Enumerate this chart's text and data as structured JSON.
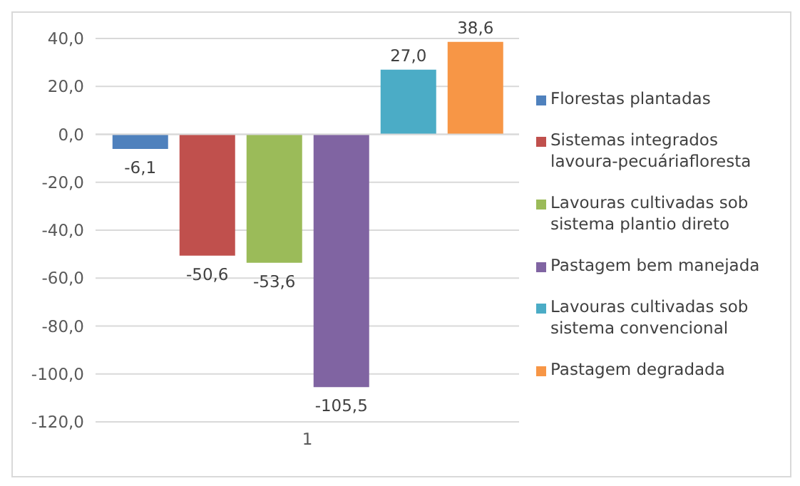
{
  "chart_data": {
    "type": "bar",
    "categories": [
      "1"
    ],
    "series": [
      {
        "name": "Florestas plantadas",
        "color": "#4f81bd",
        "values": [
          -6.1
        ],
        "value_labels": [
          "-6,1"
        ]
      },
      {
        "name": "Sistemas integrados lavoura-pecuáriafloresta",
        "color": "#c0504d",
        "values": [
          -50.6
        ],
        "value_labels": [
          "-50,6"
        ]
      },
      {
        "name": "Lavouras cultivadas sob sistema plantio direto",
        "color": "#9bbb59",
        "values": [
          -53.6
        ],
        "value_labels": [
          "-53,6"
        ]
      },
      {
        "name": "Pastagem bem manejada",
        "color": "#8064a2",
        "values": [
          -105.5
        ],
        "value_labels": [
          "-105,5"
        ]
      },
      {
        "name": "Lavouras cultivadas sob sistema convencional",
        "color": "#4bacc6",
        "values": [
          27.0
        ],
        "value_labels": [
          "27,0"
        ]
      },
      {
        "name": "Pastagem degradada",
        "color": "#f79646",
        "values": [
          38.6
        ],
        "value_labels": [
          "38,6"
        ]
      }
    ],
    "ylim": [
      -120,
      40
    ],
    "yticks": [
      {
        "value": -120,
        "label": "-120,0"
      },
      {
        "value": -100,
        "label": "-100,0"
      },
      {
        "value": -80,
        "label": "-80,0"
      },
      {
        "value": -60,
        "label": "-60,0"
      },
      {
        "value": -40,
        "label": "-40,0"
      },
      {
        "value": -20,
        "label": "-20,0"
      },
      {
        "value": 0,
        "label": "0,0"
      },
      {
        "value": 20,
        "label": "20,0"
      },
      {
        "value": 40,
        "label": "40,0"
      }
    ],
    "grid": "y",
    "legend": "right"
  }
}
